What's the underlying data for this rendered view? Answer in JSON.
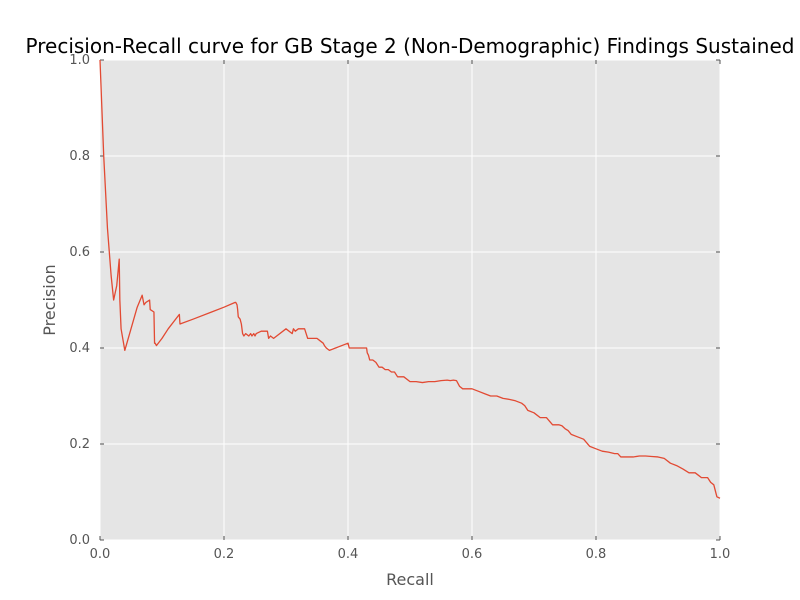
{
  "chart_data": {
    "type": "line",
    "title": "Precision-Recall curve for GB Stage 2 (Non-Demographic) Findings Sustained",
    "xlabel": "Recall",
    "ylabel": "Precision",
    "xlim": [
      0.0,
      1.0
    ],
    "ylim": [
      0.0,
      1.0
    ],
    "grid": true,
    "background": "#e5e5e5",
    "line_color": "#e24a33",
    "xticks": [
      0.0,
      0.2,
      0.4,
      0.6,
      0.8,
      1.0
    ],
    "yticks": [
      0.0,
      0.2,
      0.4,
      0.6,
      0.8,
      1.0
    ],
    "xtick_labels": [
      "0.0",
      "0.2",
      "0.4",
      "0.6",
      "0.8",
      "1.0"
    ],
    "ytick_labels": [
      "0.0",
      "0.2",
      "0.4",
      "0.6",
      "0.8",
      "1.0"
    ],
    "series": [
      {
        "x": [
          0.0,
          0.006,
          0.012,
          0.018,
          0.022,
          0.027,
          0.031,
          0.032,
          0.034,
          0.04,
          0.05,
          0.06,
          0.068,
          0.071,
          0.074,
          0.08,
          0.081,
          0.087,
          0.088,
          0.089,
          0.091,
          0.1,
          0.11,
          0.128,
          0.129,
          0.15,
          0.18,
          0.2,
          0.218,
          0.219,
          0.221,
          0.222,
          0.223,
          0.226,
          0.228,
          0.23,
          0.232,
          0.235,
          0.24,
          0.243,
          0.245,
          0.248,
          0.25,
          0.252,
          0.26,
          0.27,
          0.272,
          0.275,
          0.28,
          0.285,
          0.3,
          0.31,
          0.312,
          0.315,
          0.32,
          0.33,
          0.335,
          0.34,
          0.345,
          0.35,
          0.355,
          0.36,
          0.362,
          0.365,
          0.37,
          0.4,
          0.402,
          0.43,
          0.431,
          0.433,
          0.435,
          0.44,
          0.445,
          0.45,
          0.455,
          0.46,
          0.465,
          0.47,
          0.475,
          0.48,
          0.49,
          0.5,
          0.51,
          0.52,
          0.53,
          0.54,
          0.55,
          0.56,
          0.565,
          0.57,
          0.575,
          0.58,
          0.585,
          0.59,
          0.6,
          0.61,
          0.62,
          0.63,
          0.64,
          0.65,
          0.66,
          0.67,
          0.68,
          0.685,
          0.69,
          0.7,
          0.71,
          0.72,
          0.73,
          0.74,
          0.745,
          0.75,
          0.755,
          0.76,
          0.77,
          0.78,
          0.79,
          0.8,
          0.81,
          0.82,
          0.83,
          0.835,
          0.84,
          0.85,
          0.86,
          0.87,
          0.88,
          0.89,
          0.9,
          0.91,
          0.92,
          0.93,
          0.94,
          0.95,
          0.96,
          0.965,
          0.97,
          0.98,
          0.985,
          0.99,
          0.995,
          1.0
        ],
        "y": [
          1.0,
          0.8,
          0.65,
          0.55,
          0.5,
          0.53,
          0.585,
          0.5,
          0.44,
          0.395,
          0.44,
          0.485,
          0.51,
          0.49,
          0.495,
          0.5,
          0.48,
          0.475,
          0.41,
          0.41,
          0.405,
          0.42,
          0.44,
          0.47,
          0.45,
          0.46,
          0.475,
          0.485,
          0.495,
          0.495,
          0.49,
          0.48,
          0.465,
          0.46,
          0.45,
          0.43,
          0.425,
          0.43,
          0.425,
          0.43,
          0.425,
          0.43,
          0.425,
          0.43,
          0.435,
          0.435,
          0.42,
          0.425,
          0.42,
          0.425,
          0.44,
          0.43,
          0.44,
          0.435,
          0.44,
          0.44,
          0.42,
          0.42,
          0.42,
          0.42,
          0.415,
          0.41,
          0.405,
          0.4,
          0.395,
          0.41,
          0.4,
          0.4,
          0.39,
          0.385,
          0.375,
          0.375,
          0.37,
          0.36,
          0.36,
          0.355,
          0.355,
          0.35,
          0.35,
          0.34,
          0.34,
          0.33,
          0.33,
          0.328,
          0.33,
          0.33,
          0.332,
          0.333,
          0.332,
          0.333,
          0.332,
          0.32,
          0.315,
          0.315,
          0.315,
          0.31,
          0.305,
          0.3,
          0.3,
          0.295,
          0.293,
          0.29,
          0.285,
          0.28,
          0.27,
          0.265,
          0.255,
          0.255,
          0.24,
          0.24,
          0.238,
          0.232,
          0.228,
          0.22,
          0.215,
          0.21,
          0.195,
          0.19,
          0.185,
          0.183,
          0.18,
          0.18,
          0.173,
          0.173,
          0.173,
          0.175,
          0.175,
          0.174,
          0.173,
          0.17,
          0.16,
          0.155,
          0.148,
          0.14,
          0.14,
          0.135,
          0.13,
          0.13,
          0.12,
          0.115,
          0.09,
          0.087
        ]
      }
    ]
  }
}
